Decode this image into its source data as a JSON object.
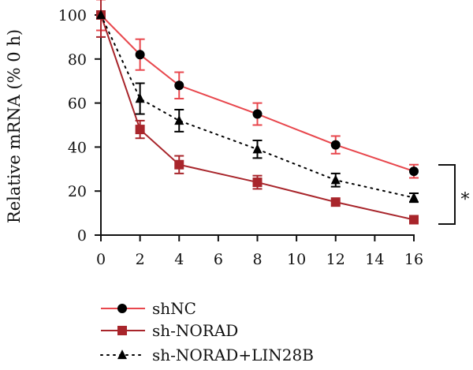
{
  "chart_data": {
    "type": "line",
    "title": "",
    "xlabel": "",
    "ylabel": "Relative mRNA (% 0 h)",
    "xlim": [
      0,
      16
    ],
    "ylim": [
      0,
      100
    ],
    "x_ticks": [
      0,
      2,
      4,
      6,
      8,
      10,
      12,
      14,
      16
    ],
    "y_ticks": [
      0,
      20,
      40,
      60,
      80,
      100
    ],
    "grid": false,
    "legend_placement": "bottom",
    "significance_label": "*",
    "series": [
      {
        "name": "shNC",
        "color": "#e8474d",
        "marker": "circle",
        "marker_color": "#000000",
        "line_style": "solid",
        "x": [
          0,
          2,
          4,
          8,
          12,
          16
        ],
        "y": [
          100,
          82,
          68,
          55,
          41,
          29
        ],
        "error": [
          7,
          7,
          6,
          5,
          4,
          3
        ]
      },
      {
        "name": "sh-NORAD",
        "color": "#a8252b",
        "marker": "square",
        "marker_color": "#a8252b",
        "line_style": "solid",
        "x": [
          0,
          2,
          4,
          8,
          12,
          16
        ],
        "y": [
          100,
          48,
          32,
          24,
          15,
          7
        ],
        "error": [
          10,
          4,
          4,
          3,
          0,
          0
        ]
      },
      {
        "name": "sh-NORAD+LIN28B",
        "color": "#000000",
        "marker": "triangle",
        "marker_color": "#000000",
        "line_style": "dotted",
        "x": [
          0,
          2,
          4,
          8,
          12,
          16
        ],
        "y": [
          100,
          62,
          52,
          39,
          25,
          17
        ],
        "error": [
          0,
          7,
          5,
          4,
          3,
          2
        ]
      }
    ]
  }
}
